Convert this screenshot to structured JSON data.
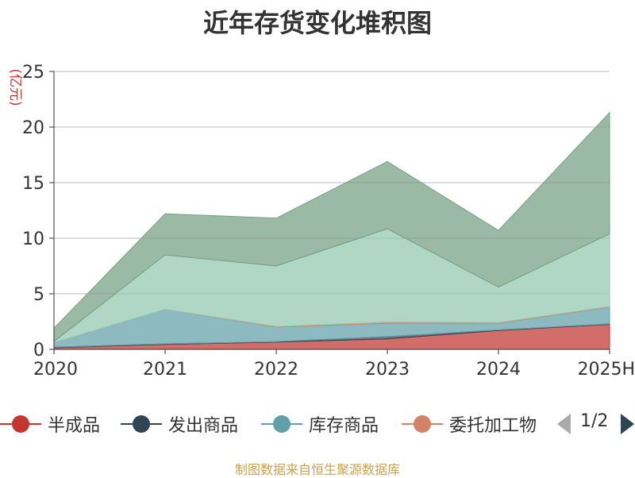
{
  "chart_data": {
    "type": "area",
    "stacked": true,
    "title": "近年存货变化堆积图",
    "ylabel": "(亿元)",
    "categories": [
      "2020",
      "2021",
      "2022",
      "2023",
      "2024",
      "2025H"
    ],
    "ylim": [
      0,
      25
    ],
    "yticks": [
      0,
      5,
      10,
      15,
      20,
      25
    ],
    "grid": true,
    "series": [
      {
        "name": "半成品",
        "color": "#c23531",
        "values": [
          0.15,
          0.45,
          0.65,
          0.95,
          1.7,
          2.25
        ]
      },
      {
        "name": "发出商品",
        "color": "#2f4554",
        "values": [
          0.05,
          0.05,
          0.05,
          0.2,
          0.05,
          0.05
        ]
      },
      {
        "name": "库存商品",
        "color": "#61a0a8",
        "values": [
          0.4,
          3.1,
          1.3,
          1.2,
          0.6,
          1.5
        ]
      },
      {
        "name": "委托加工物",
        "color": "#d48265",
        "values": [
          0.0,
          0.0,
          0.05,
          0.1,
          0.05,
          0.05
        ]
      },
      {
        "name": "",
        "color": "#91c7ae",
        "values": [
          0.1,
          4.9,
          5.45,
          8.4,
          3.2,
          6.55
        ]
      },
      {
        "name": "",
        "color": "#749f83",
        "values": [
          1.2,
          3.7,
          4.3,
          6.05,
          5.1,
          10.9
        ]
      }
    ],
    "legend_placement": "bottom"
  },
  "legend": {
    "items": [
      {
        "label": "半成品",
        "color": "#c23531"
      },
      {
        "label": "发出商品",
        "color": "#2f4554"
      },
      {
        "label": "库存商品",
        "color": "#61a0a8"
      },
      {
        "label": "委托加工物",
        "color": "#d48265"
      }
    ],
    "page_info": "1/2"
  },
  "source": "制图数据来自恒生聚源数据库"
}
